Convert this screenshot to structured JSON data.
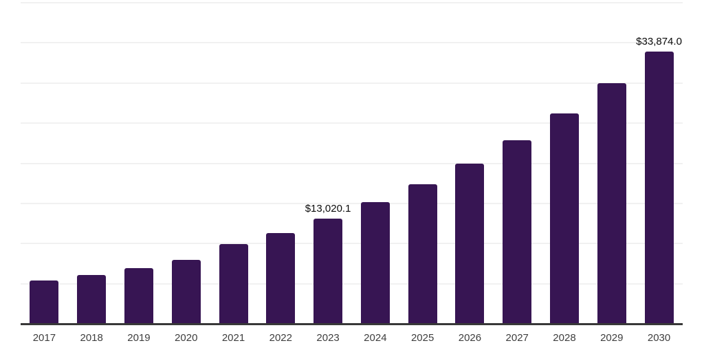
{
  "chart_data": {
    "type": "bar",
    "title": "",
    "xlabel": "",
    "ylabel": "",
    "categories": [
      "2017",
      "2018",
      "2019",
      "2020",
      "2021",
      "2022",
      "2023",
      "2024",
      "2025",
      "2026",
      "2027",
      "2028",
      "2029",
      "2030"
    ],
    "values": [
      5280,
      6010,
      6820,
      7850,
      9830,
      11250,
      13020.1,
      15060,
      17300,
      19870,
      22790,
      26140,
      29920,
      33874.0
    ],
    "value_labels": [
      "",
      "",
      "",
      "",
      "",
      "",
      "$13,020.1",
      "",
      "",
      "",
      "",
      "",
      "",
      "$33,874.0"
    ],
    "ylim": [
      0,
      40000
    ],
    "grid_interval": 5000,
    "grid": "horizontal-only",
    "legend_position": "none",
    "colors": {
      "bar": "#371553",
      "axis_line": "#383838",
      "gridline": "#f1f1f1",
      "year_label": "#3e3e3e",
      "value_label": "#0a0a0a",
      "background": "#ffffff"
    }
  }
}
